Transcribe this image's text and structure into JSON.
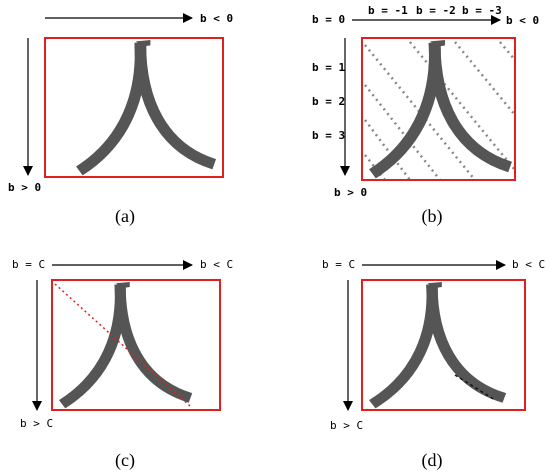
{
  "panels": [
    {
      "caption": "(a)",
      "x_label": "b < 0",
      "y_label": "b > 0"
    },
    {
      "caption": "(b)",
      "origin_label": "b = 0",
      "x_label": "b < 0",
      "y_label": "b > 0",
      "top_labels": [
        "b = -1",
        "b = -2",
        "b = -3"
      ],
      "side_labels": [
        "b = 1",
        "b = 2",
        "b = 3"
      ]
    },
    {
      "caption": "(c)",
      "origin_label": "b = C",
      "x_label": "b < C",
      "y_label": "b > C"
    },
    {
      "caption": "(d)",
      "origin_label": "b = C",
      "x_label": "b < C",
      "y_label": "b > C"
    }
  ]
}
